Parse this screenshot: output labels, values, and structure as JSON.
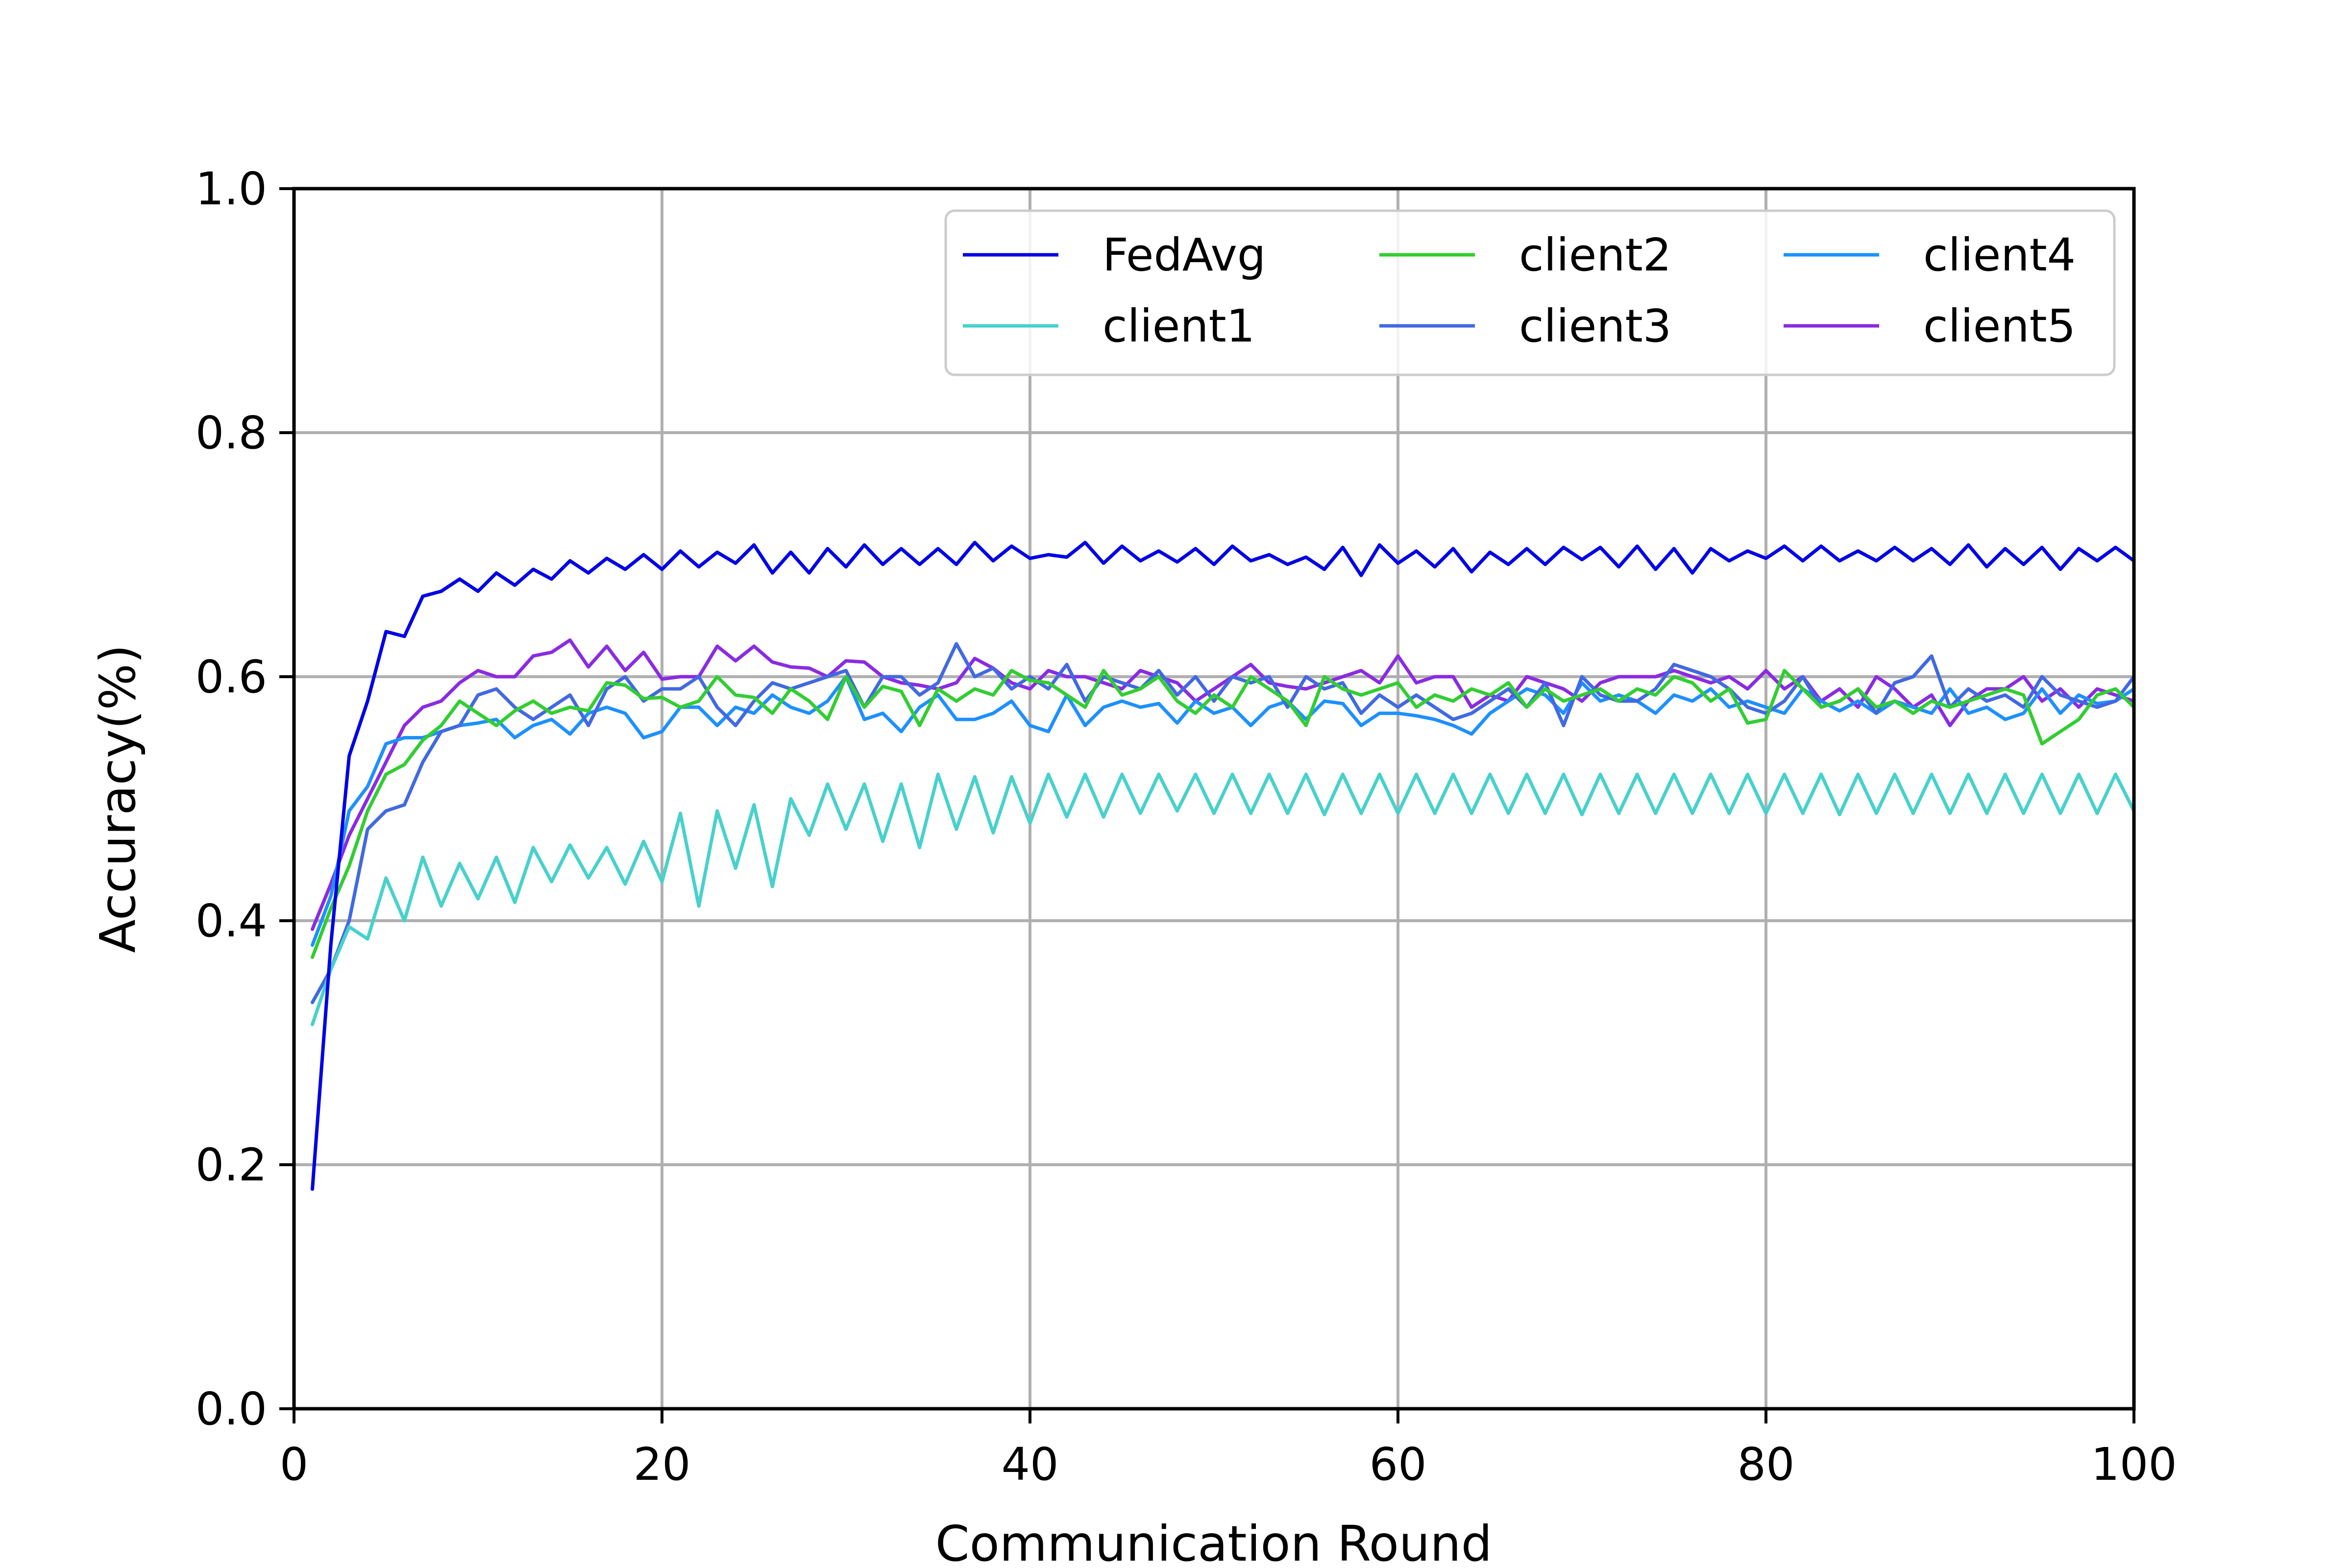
{
  "chart_data": {
    "type": "line",
    "title": "",
    "xlabel": "Communication Round",
    "ylabel": "Accuracy(%)",
    "xlim": [
      0,
      100
    ],
    "ylim": [
      0.0,
      1.0
    ],
    "xticks": [
      0,
      20,
      40,
      60,
      80,
      100
    ],
    "xtick_labels": [
      "0",
      "20",
      "40",
      "60",
      "80",
      "100"
    ],
    "yticks": [
      0.0,
      0.2,
      0.4,
      0.6,
      0.8,
      1.0
    ],
    "ytick_labels": [
      "0.0",
      "0.2",
      "0.4",
      "0.6",
      "0.8",
      "1.0"
    ],
    "grid": true,
    "legend": {
      "placement": "top-right",
      "columns": 3
    },
    "x": [
      1,
      2,
      3,
      4,
      5,
      6,
      7,
      8,
      9,
      10,
      11,
      12,
      13,
      14,
      15,
      16,
      17,
      18,
      19,
      20,
      21,
      22,
      23,
      24,
      25,
      26,
      27,
      28,
      29,
      30,
      31,
      32,
      33,
      34,
      35,
      36,
      37,
      38,
      39,
      40,
      41,
      42,
      43,
      44,
      45,
      46,
      47,
      48,
      49,
      50,
      51,
      52,
      53,
      54,
      55,
      56,
      57,
      58,
      59,
      60,
      61,
      62,
      63,
      64,
      65,
      66,
      67,
      68,
      69,
      70,
      71,
      72,
      73,
      74,
      75,
      76,
      77,
      78,
      79,
      80,
      81,
      82,
      83,
      84,
      85,
      86,
      87,
      88,
      89,
      90,
      91,
      92,
      93,
      94,
      95,
      96,
      97,
      98,
      99,
      100
    ],
    "series": [
      {
        "name": "FedAvg",
        "color": "#0000e6",
        "values": [
          0.18,
          0.38,
          0.535,
          0.58,
          0.637,
          0.633,
          0.666,
          0.67,
          0.68,
          0.67,
          0.685,
          0.675,
          0.688,
          0.68,
          0.695,
          0.685,
          0.697,
          0.688,
          0.7,
          0.688,
          0.703,
          0.69,
          0.702,
          0.693,
          0.708,
          0.685,
          0.702,
          0.685,
          0.705,
          0.69,
          0.708,
          0.692,
          0.705,
          0.692,
          0.705,
          0.692,
          0.71,
          0.695,
          0.707,
          0.697,
          0.7,
          0.698,
          0.71,
          0.693,
          0.707,
          0.695,
          0.703,
          0.694,
          0.705,
          0.692,
          0.707,
          0.695,
          0.7,
          0.692,
          0.698,
          0.688,
          0.706,
          0.683,
          0.708,
          0.693,
          0.703,
          0.69,
          0.705,
          0.686,
          0.702,
          0.692,
          0.705,
          0.692,
          0.706,
          0.696,
          0.706,
          0.69,
          0.707,
          0.688,
          0.705,
          0.685,
          0.705,
          0.695,
          0.703,
          0.697,
          0.707,
          0.695,
          0.707,
          0.695,
          0.703,
          0.695,
          0.706,
          0.695,
          0.705,
          0.692,
          0.708,
          0.69,
          0.705,
          0.692,
          0.706,
          0.688,
          0.705,
          0.695,
          0.706,
          0.695
        ]
      },
      {
        "name": "client1",
        "color": "#48d1cc",
        "values": [
          0.315,
          0.36,
          0.395,
          0.385,
          0.435,
          0.4,
          0.452,
          0.412,
          0.447,
          0.418,
          0.452,
          0.415,
          0.46,
          0.432,
          0.462,
          0.435,
          0.46,
          0.43,
          0.465,
          0.432,
          0.488,
          0.412,
          0.49,
          0.443,
          0.495,
          0.428,
          0.5,
          0.47,
          0.512,
          0.475,
          0.512,
          0.465,
          0.512,
          0.46,
          0.52,
          0.475,
          0.518,
          0.472,
          0.518,
          0.48,
          0.52,
          0.485,
          0.52,
          0.485,
          0.52,
          0.488,
          0.52,
          0.49,
          0.52,
          0.488,
          0.52,
          0.488,
          0.52,
          0.488,
          0.52,
          0.487,
          0.52,
          0.488,
          0.52,
          0.488,
          0.52,
          0.488,
          0.52,
          0.488,
          0.52,
          0.488,
          0.52,
          0.488,
          0.52,
          0.487,
          0.52,
          0.488,
          0.52,
          0.488,
          0.52,
          0.488,
          0.52,
          0.488,
          0.52,
          0.488,
          0.52,
          0.488,
          0.52,
          0.487,
          0.52,
          0.488,
          0.52,
          0.488,
          0.52,
          0.488,
          0.52,
          0.488,
          0.52,
          0.488,
          0.52,
          0.488,
          0.52,
          0.488,
          0.52,
          0.49
        ]
      },
      {
        "name": "client2",
        "color": "#32cd32",
        "values": [
          0.37,
          0.41,
          0.445,
          0.49,
          0.52,
          0.528,
          0.548,
          0.56,
          0.58,
          0.57,
          0.56,
          0.572,
          0.58,
          0.57,
          0.575,
          0.572,
          0.595,
          0.593,
          0.582,
          0.583,
          0.575,
          0.58,
          0.6,
          0.585,
          0.583,
          0.57,
          0.59,
          0.58,
          0.565,
          0.6,
          0.575,
          0.592,
          0.588,
          0.56,
          0.59,
          0.58,
          0.59,
          0.585,
          0.605,
          0.597,
          0.595,
          0.585,
          0.575,
          0.605,
          0.585,
          0.59,
          0.6,
          0.58,
          0.57,
          0.585,
          0.575,
          0.6,
          0.59,
          0.58,
          0.56,
          0.6,
          0.59,
          0.585,
          0.59,
          0.595,
          0.575,
          0.585,
          0.58,
          0.59,
          0.585,
          0.595,
          0.575,
          0.59,
          0.58,
          0.585,
          0.59,
          0.58,
          0.59,
          0.585,
          0.6,
          0.595,
          0.58,
          0.59,
          0.562,
          0.565,
          0.605,
          0.59,
          0.575,
          0.58,
          0.59,
          0.575,
          0.58,
          0.57,
          0.58,
          0.575,
          0.58,
          0.585,
          0.59,
          0.585,
          0.545,
          0.555,
          0.565,
          0.585,
          0.59,
          0.575
        ]
      },
      {
        "name": "client3",
        "color": "#4169e1",
        "values": [
          0.333,
          0.36,
          0.4,
          0.475,
          0.49,
          0.495,
          0.53,
          0.555,
          0.56,
          0.585,
          0.59,
          0.575,
          0.565,
          0.575,
          0.585,
          0.56,
          0.59,
          0.6,
          0.58,
          0.59,
          0.59,
          0.6,
          0.575,
          0.56,
          0.58,
          0.595,
          0.59,
          0.595,
          0.6,
          0.605,
          0.575,
          0.6,
          0.6,
          0.585,
          0.595,
          0.627,
          0.6,
          0.607,
          0.59,
          0.6,
          0.59,
          0.61,
          0.58,
          0.6,
          0.595,
          0.59,
          0.605,
          0.585,
          0.6,
          0.58,
          0.6,
          0.595,
          0.6,
          0.575,
          0.6,
          0.59,
          0.595,
          0.57,
          0.585,
          0.575,
          0.585,
          0.575,
          0.565,
          0.57,
          0.58,
          0.59,
          0.575,
          0.595,
          0.56,
          0.6,
          0.585,
          0.58,
          0.58,
          0.59,
          0.61,
          0.605,
          0.6,
          0.59,
          0.575,
          0.57,
          0.58,
          0.6,
          0.575,
          0.58,
          0.59,
          0.57,
          0.595,
          0.6,
          0.617,
          0.575,
          0.59,
          0.58,
          0.585,
          0.575,
          0.6,
          0.585,
          0.58,
          0.575,
          0.58,
          0.6
        ]
      },
      {
        "name": "client4",
        "color": "#1e90ff",
        "values": [
          0.38,
          0.42,
          0.49,
          0.51,
          0.545,
          0.55,
          0.55,
          0.555,
          0.56,
          0.562,
          0.565,
          0.55,
          0.56,
          0.565,
          0.553,
          0.57,
          0.575,
          0.57,
          0.55,
          0.555,
          0.575,
          0.575,
          0.56,
          0.575,
          0.57,
          0.585,
          0.575,
          0.57,
          0.58,
          0.6,
          0.565,
          0.57,
          0.555,
          0.575,
          0.585,
          0.565,
          0.565,
          0.57,
          0.58,
          0.56,
          0.555,
          0.585,
          0.56,
          0.575,
          0.58,
          0.575,
          0.578,
          0.562,
          0.58,
          0.57,
          0.575,
          0.56,
          0.575,
          0.58,
          0.565,
          0.58,
          0.578,
          0.56,
          0.57,
          0.57,
          0.568,
          0.565,
          0.56,
          0.553,
          0.57,
          0.58,
          0.59,
          0.585,
          0.57,
          0.595,
          0.58,
          0.585,
          0.58,
          0.57,
          0.585,
          0.58,
          0.59,
          0.575,
          0.58,
          0.575,
          0.57,
          0.59,
          0.58,
          0.572,
          0.58,
          0.57,
          0.58,
          0.575,
          0.57,
          0.59,
          0.57,
          0.575,
          0.565,
          0.57,
          0.59,
          0.57,
          0.585,
          0.578,
          0.58,
          0.59
        ]
      },
      {
        "name": "client5",
        "color": "#8a2be2",
        "values": [
          0.393,
          0.43,
          0.47,
          0.5,
          0.53,
          0.56,
          0.575,
          0.58,
          0.595,
          0.605,
          0.6,
          0.6,
          0.617,
          0.62,
          0.63,
          0.608,
          0.625,
          0.605,
          0.62,
          0.598,
          0.6,
          0.6,
          0.625,
          0.613,
          0.625,
          0.612,
          0.608,
          0.607,
          0.6,
          0.613,
          0.612,
          0.6,
          0.595,
          0.593,
          0.59,
          0.595,
          0.615,
          0.607,
          0.595,
          0.59,
          0.605,
          0.6,
          0.6,
          0.595,
          0.59,
          0.605,
          0.6,
          0.595,
          0.58,
          0.59,
          0.6,
          0.61,
          0.595,
          0.592,
          0.59,
          0.595,
          0.6,
          0.605,
          0.595,
          0.617,
          0.595,
          0.6,
          0.6,
          0.575,
          0.585,
          0.58,
          0.6,
          0.595,
          0.59,
          0.58,
          0.595,
          0.6,
          0.6,
          0.6,
          0.605,
          0.6,
          0.595,
          0.6,
          0.59,
          0.605,
          0.59,
          0.6,
          0.58,
          0.59,
          0.575,
          0.6,
          0.59,
          0.575,
          0.585,
          0.56,
          0.58,
          0.59,
          0.59,
          0.6,
          0.58,
          0.59,
          0.575,
          0.59,
          0.585,
          0.58
        ]
      }
    ]
  }
}
